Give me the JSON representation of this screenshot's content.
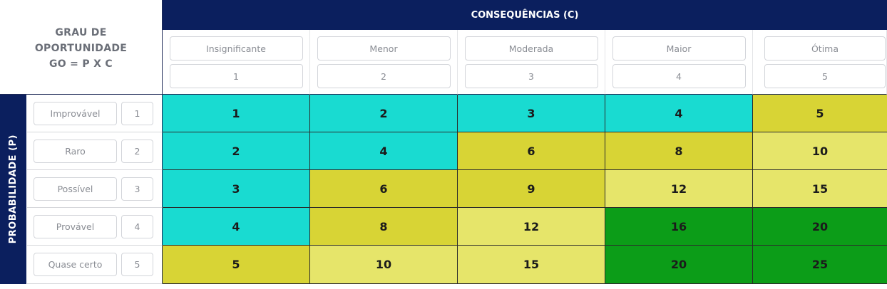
{
  "title": {
    "line1": "GRAU DE",
    "line2": "OPORTUNIDADE",
    "line3": "GO = P X C"
  },
  "consequences": {
    "header": "CONSEQUÊNCIAS (C)",
    "columns": [
      {
        "label": "Insignificante",
        "value": "1"
      },
      {
        "label": "Menor",
        "value": "2"
      },
      {
        "label": "Moderada",
        "value": "3"
      },
      {
        "label": "Maior",
        "value": "4"
      },
      {
        "label": "Ótima",
        "value": "5"
      }
    ]
  },
  "probability": {
    "header": "PROBABILIDADE (P)",
    "rows": [
      {
        "label": "Improvável",
        "value": "1"
      },
      {
        "label": "Raro",
        "value": "2"
      },
      {
        "label": "Possível",
        "value": "3"
      },
      {
        "label": "Provável",
        "value": "4"
      },
      {
        "label": "Quase certo",
        "value": "5"
      }
    ]
  },
  "matrix": [
    [
      "1",
      "2",
      "3",
      "4",
      "5"
    ],
    [
      "2",
      "4",
      "6",
      "8",
      "10"
    ],
    [
      "3",
      "6",
      "9",
      "12",
      "15"
    ],
    [
      "4",
      "8",
      "12",
      "16",
      "20"
    ],
    [
      "5",
      "10",
      "15",
      "20",
      "25"
    ]
  ],
  "level_colors": {
    "low": "#19dbd1",
    "medium": "#d8d435",
    "high": "#e6e56a",
    "very_high": "#0c9d18"
  },
  "matrix_levels": [
    [
      "low",
      "low",
      "low",
      "low",
      "medium"
    ],
    [
      "low",
      "low",
      "medium",
      "medium",
      "high"
    ],
    [
      "low",
      "medium",
      "medium",
      "high",
      "high"
    ],
    [
      "low",
      "medium",
      "high",
      "very_high",
      "very_high"
    ],
    [
      "medium",
      "high",
      "high",
      "very_high",
      "very_high"
    ]
  ],
  "colors": {
    "navy": "#0b1f5e"
  }
}
